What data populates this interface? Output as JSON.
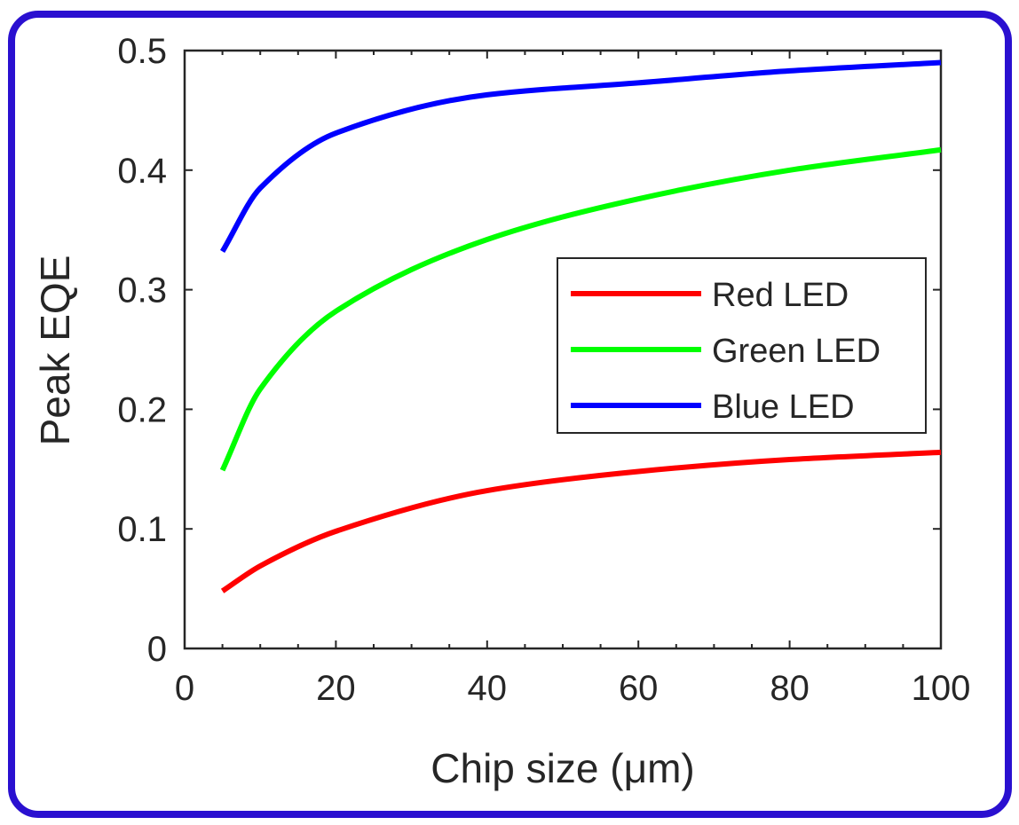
{
  "chart_data": {
    "type": "line",
    "xlabel": "Chip size (μm)",
    "ylabel": "Peak EQE",
    "xlim": [
      0,
      100
    ],
    "ylim": [
      0,
      0.5
    ],
    "xticks": [
      "0",
      "20",
      "40",
      "60",
      "80",
      "100"
    ],
    "yticks": [
      "0",
      "0.1",
      "0.2",
      "0.3",
      "0.4",
      "0.5"
    ],
    "grid": false,
    "legend_position": "center-right",
    "x": [
      5,
      10,
      20,
      40,
      60,
      80,
      100
    ],
    "series": [
      {
        "name": "Red LED",
        "color": "#ff0000",
        "values": [
          0.048,
          0.069,
          0.098,
          0.132,
          0.148,
          0.158,
          0.164
        ]
      },
      {
        "name": "Green LED",
        "color": "#00ff00",
        "values": [
          0.149,
          0.217,
          0.282,
          0.342,
          0.376,
          0.4,
          0.417
        ]
      },
      {
        "name": "Blue LED",
        "color": "#0000ff",
        "values": [
          0.332,
          0.385,
          0.431,
          0.463,
          0.473,
          0.483,
          0.49
        ]
      }
    ]
  }
}
